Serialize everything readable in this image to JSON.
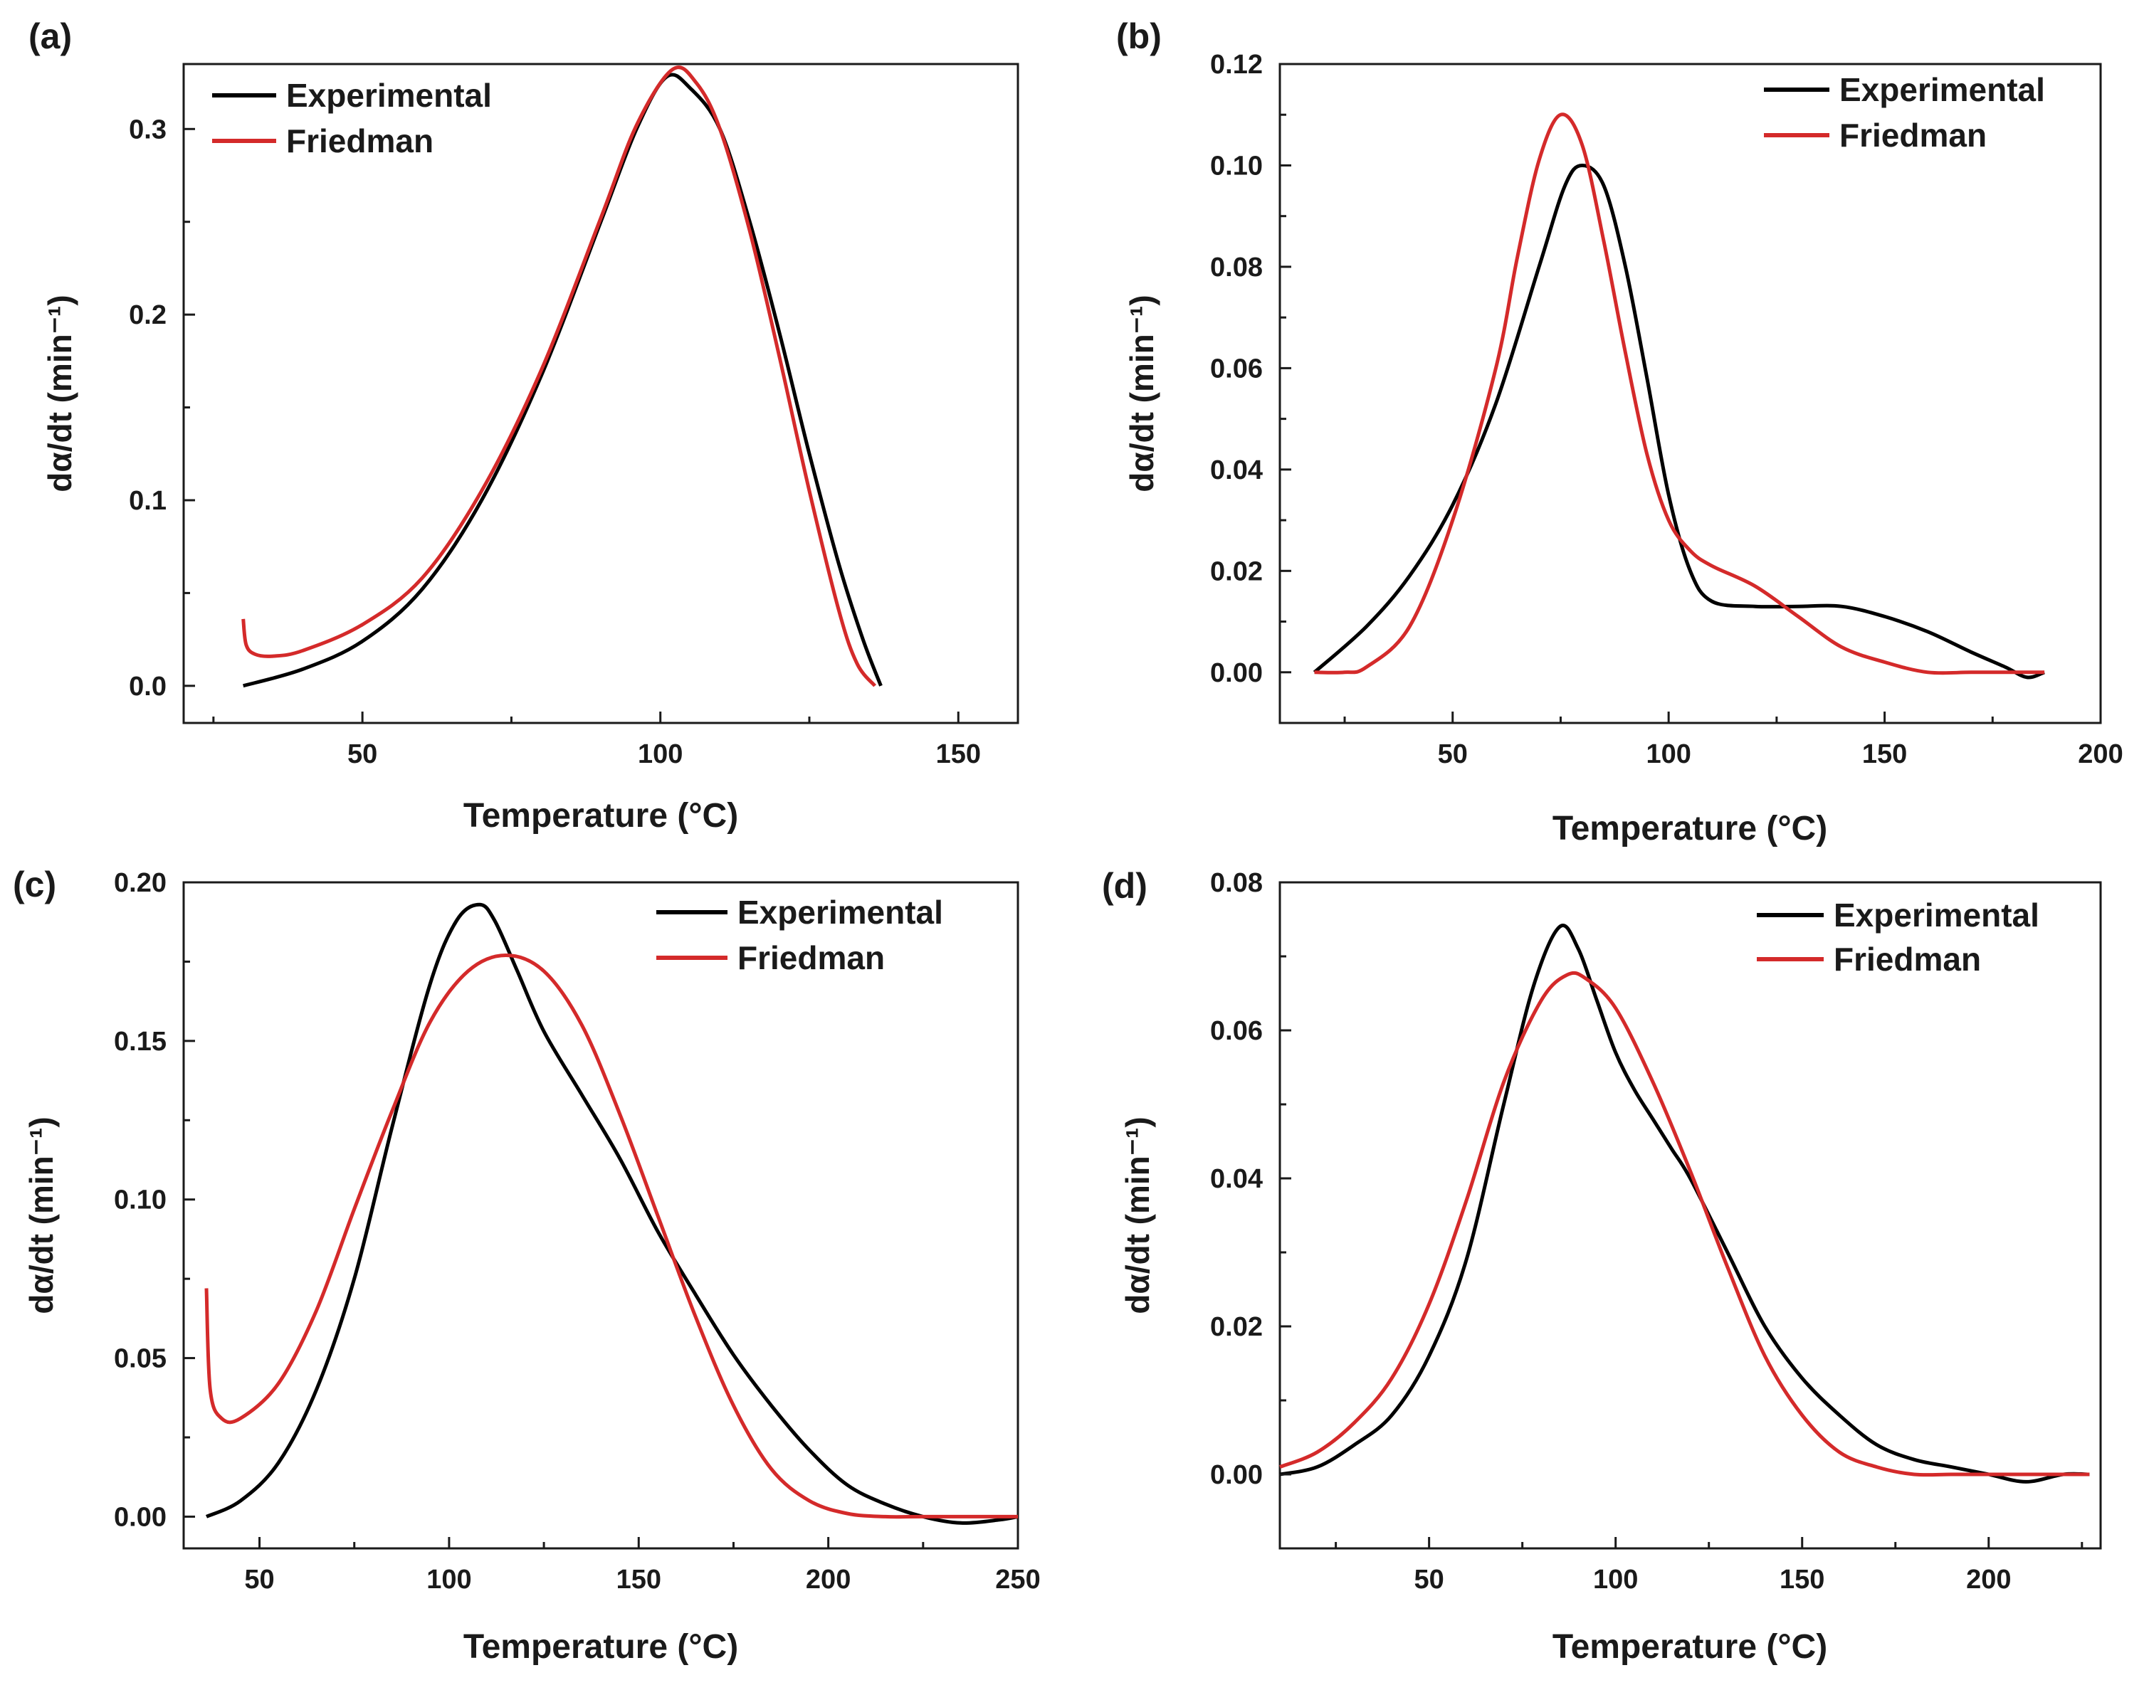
{
  "colors": {
    "experimental": "#000000",
    "friedman": "#d42a2a",
    "axis": "#1a1a1a"
  },
  "chart_data": [
    {
      "type": "line",
      "panel_label": "(a)",
      "xlabel": "Temperature (°C)",
      "ylabel": "dα/dt (min⁻¹)",
      "xlim": [
        20,
        160
      ],
      "ylim": [
        -0.02,
        0.335
      ],
      "xticks": [
        "50",
        "100",
        "150"
      ],
      "yticks": [
        "0.0",
        "0.1",
        "0.2",
        "0.3"
      ],
      "legend": [
        "Experimental",
        "Friedman"
      ],
      "legend_placement": "top-left",
      "series": [
        {
          "name": "Experimental",
          "x": [
            30,
            40,
            50,
            60,
            70,
            80,
            90,
            96,
            101,
            105,
            110,
            115,
            120,
            125,
            130,
            134,
            137
          ],
          "y": [
            0.0,
            0.009,
            0.024,
            0.052,
            0.1,
            0.167,
            0.25,
            0.3,
            0.328,
            0.322,
            0.3,
            0.25,
            0.19,
            0.125,
            0.065,
            0.025,
            0.0
          ]
        },
        {
          "name": "Friedman",
          "x": [
            30,
            30.5,
            32,
            35,
            40,
            50,
            60,
            70,
            80,
            90,
            96,
            102,
            106,
            110,
            115,
            120,
            125,
            130,
            133,
            136
          ],
          "y": [
            0.036,
            0.022,
            0.017,
            0.016,
            0.019,
            0.033,
            0.058,
            0.105,
            0.17,
            0.252,
            0.302,
            0.332,
            0.325,
            0.3,
            0.245,
            0.177,
            0.105,
            0.04,
            0.012,
            0.0
          ]
        }
      ]
    },
    {
      "type": "line",
      "panel_label": "(b)",
      "xlabel": "Temperature (°C)",
      "ylabel": "dα/dt (min⁻¹)",
      "xlim": [
        10,
        200
      ],
      "ylim": [
        -0.01,
        0.12
      ],
      "xticks": [
        "50",
        "100",
        "150",
        "200"
      ],
      "yticks": [
        "0.00",
        "0.02",
        "0.04",
        "0.06",
        "0.08",
        "0.10",
        "0.12"
      ],
      "legend": [
        "Experimental",
        "Friedman"
      ],
      "legend_placement": "top-right",
      "series": [
        {
          "name": "Experimental",
          "x": [
            18,
            30,
            40,
            50,
            60,
            70,
            76,
            80,
            85,
            90,
            95,
            100,
            105,
            110,
            120,
            130,
            140,
            150,
            160,
            170,
            178,
            183,
            187
          ],
          "y": [
            0.0,
            0.009,
            0.019,
            0.033,
            0.053,
            0.08,
            0.096,
            0.1,
            0.096,
            0.08,
            0.058,
            0.035,
            0.02,
            0.014,
            0.013,
            0.013,
            0.013,
            0.011,
            0.008,
            0.004,
            0.001,
            -0.001,
            0.0
          ]
        },
        {
          "name": "Friedman",
          "x": [
            18,
            25,
            30,
            40,
            50,
            60,
            65,
            70,
            75,
            80,
            85,
            90,
            95,
            100,
            105,
            110,
            120,
            130,
            140,
            150,
            160,
            170,
            180,
            187
          ],
          "y": [
            0.0,
            0.0,
            0.001,
            0.009,
            0.03,
            0.06,
            0.082,
            0.101,
            0.11,
            0.104,
            0.085,
            0.063,
            0.043,
            0.03,
            0.024,
            0.021,
            0.017,
            0.011,
            0.005,
            0.002,
            0.0,
            0.0,
            0.0,
            0.0
          ]
        }
      ]
    },
    {
      "type": "line",
      "panel_label": "(c)",
      "xlabel": "Temperature (°C)",
      "ylabel": "dα/dt (min⁻¹)",
      "xlim": [
        30,
        250
      ],
      "ylim": [
        -0.01,
        0.2
      ],
      "xticks": [
        "50",
        "100",
        "150",
        "200",
        "250"
      ],
      "yticks": [
        "0.00",
        "0.05",
        "0.10",
        "0.15",
        "0.20"
      ],
      "legend": [
        "Experimental",
        "Friedman"
      ],
      "legend_placement": "top-right",
      "series": [
        {
          "name": "Experimental",
          "x": [
            36,
            45,
            55,
            65,
            75,
            85,
            95,
            102,
            108,
            112,
            118,
            125,
            135,
            145,
            155,
            165,
            175,
            185,
            195,
            205,
            215,
            225,
            235,
            245,
            250
          ],
          "y": [
            0.0,
            0.005,
            0.017,
            0.04,
            0.075,
            0.123,
            0.168,
            0.188,
            0.193,
            0.188,
            0.172,
            0.153,
            0.133,
            0.113,
            0.09,
            0.07,
            0.051,
            0.035,
            0.021,
            0.01,
            0.004,
            0.0,
            -0.002,
            -0.001,
            0.0
          ]
        },
        {
          "name": "Friedman",
          "x": [
            36,
            37,
            40,
            45,
            55,
            65,
            75,
            85,
            95,
            105,
            115,
            125,
            135,
            145,
            155,
            165,
            175,
            185,
            195,
            205,
            215,
            225,
            250
          ],
          "y": [
            0.072,
            0.04,
            0.031,
            0.031,
            0.042,
            0.065,
            0.097,
            0.128,
            0.156,
            0.172,
            0.177,
            0.172,
            0.155,
            0.127,
            0.095,
            0.063,
            0.035,
            0.015,
            0.005,
            0.001,
            0.0,
            0.0,
            0.0
          ]
        }
      ]
    },
    {
      "type": "line",
      "panel_label": "(d)",
      "xlabel": "Temperature (°C)",
      "ylabel": "dα/dt (min⁻¹)",
      "xlim": [
        10,
        230
      ],
      "ylim": [
        -0.01,
        0.08
      ],
      "xticks": [
        "50",
        "100",
        "150",
        "200"
      ],
      "yticks": [
        "0.00",
        "0.02",
        "0.04",
        "0.06",
        "0.08"
      ],
      "legend": [
        "Experimental",
        "Friedman"
      ],
      "legend_placement": "top-right",
      "series": [
        {
          "name": "Experimental",
          "x": [
            10,
            20,
            30,
            40,
            50,
            60,
            70,
            78,
            85,
            90,
            95,
            100,
            105,
            110,
            115,
            120,
            130,
            140,
            150,
            160,
            170,
            180,
            190,
            200,
            210,
            220,
            227
          ],
          "y": [
            0.0,
            0.001,
            0.004,
            0.008,
            0.016,
            0.029,
            0.05,
            0.066,
            0.074,
            0.071,
            0.064,
            0.057,
            0.052,
            0.048,
            0.044,
            0.04,
            0.03,
            0.02,
            0.013,
            0.008,
            0.004,
            0.002,
            0.001,
            0.0,
            -0.001,
            0.0,
            0.0
          ]
        },
        {
          "name": "Friedman",
          "x": [
            10,
            20,
            30,
            40,
            50,
            60,
            70,
            80,
            87,
            92,
            100,
            110,
            120,
            130,
            140,
            150,
            160,
            170,
            180,
            190,
            200,
            210,
            227
          ],
          "y": [
            0.001,
            0.003,
            0.007,
            0.013,
            0.023,
            0.037,
            0.053,
            0.064,
            0.0675,
            0.067,
            0.063,
            0.053,
            0.041,
            0.028,
            0.016,
            0.008,
            0.003,
            0.001,
            0.0,
            0.0,
            0.0,
            0.0,
            0.0
          ]
        }
      ]
    }
  ]
}
